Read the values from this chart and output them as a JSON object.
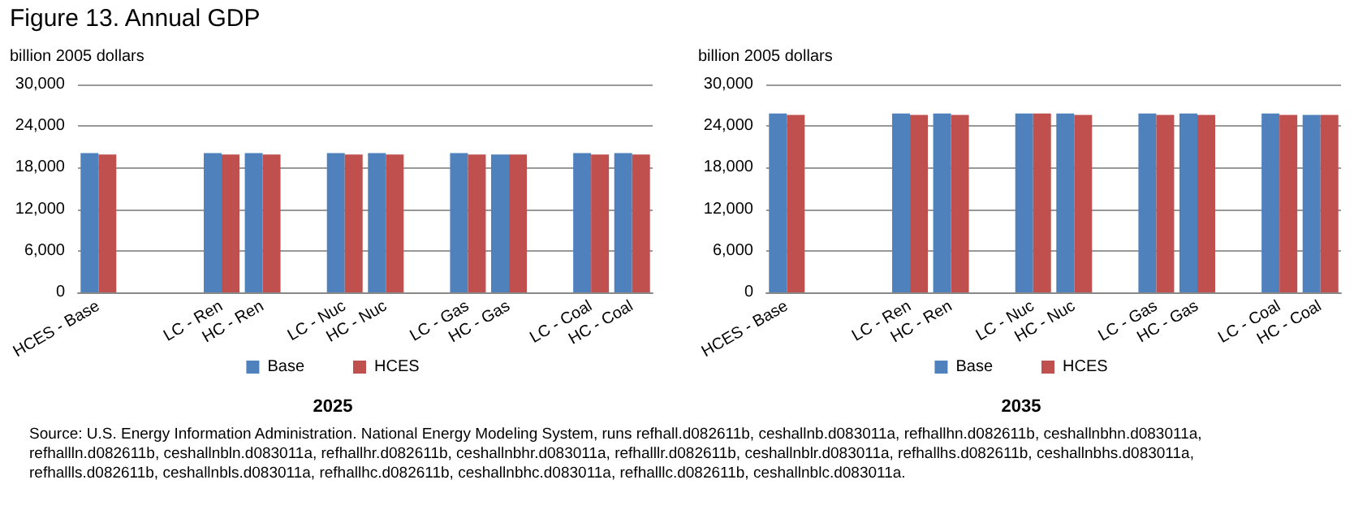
{
  "chart_data": [
    {
      "type": "bar",
      "title": "Figure 13.  Annual GDP",
      "ylabel": "billion 2005 dollars",
      "xlabel": "2025",
      "categories": [
        "HCES - Base",
        null,
        null,
        "LC - Ren",
        "HC - Ren",
        null,
        "LC - Nuc",
        "HC - Nuc",
        null,
        "LC - Gas",
        "HC - Gas",
        null,
        "LC - Coal",
        "HC - Coal"
      ],
      "series": [
        {
          "name": "Base",
          "color": "#4f81bd",
          "values": [
            20100,
            null,
            null,
            20100,
            20100,
            null,
            20100,
            20100,
            null,
            20100,
            19900,
            null,
            20100,
            20100
          ]
        },
        {
          "name": "HCES",
          "color": "#c0504d",
          "values": [
            19900,
            null,
            null,
            19900,
            19900,
            null,
            19900,
            19900,
            null,
            19900,
            19900,
            null,
            19900,
            19900
          ]
        }
      ],
      "ylim": [
        0,
        30000
      ],
      "yticks": [
        {
          "value": 0,
          "label": "0"
        },
        {
          "value": 6000,
          "label": "6,000"
        },
        {
          "value": 12000,
          "label": "12,000"
        },
        {
          "value": 18000,
          "label": "18,000"
        },
        {
          "value": 24000,
          "label": "24,000"
        },
        {
          "value": 30000,
          "label": "30,000"
        }
      ],
      "grid": "y",
      "legend": "bottom",
      "annotations": [
        "Source:  U.S. Energy Information Administration.  National Energy Modeling System, runs refhall.d082611b, ceshallnb.d083011a, refhallhn.d082611b, ceshallnbhn.d083011a, refhallln.d082611b, ceshallnbln.d083011a, refhallhr.d082611b, ceshallnbhr.d083011a, refhalllr.d082611b, ceshallnblr.d083011a, refhallhs.d082611b, ceshallnbhs.d083011a, refhallls.d082611b, ceshallnbls.d083011a, refhallhc.d082611b, ceshallnbhc.d083011a, refhalllc.d082611b, ceshallnblc.d083011a."
      ]
    },
    {
      "type": "bar",
      "ylabel": "billion 2005 dollars",
      "xlabel": "2035",
      "categories": [
        "HCES - Base",
        null,
        null,
        "LC - Ren",
        "HC - Ren",
        null,
        "LC - Nuc",
        "HC - Nuc",
        null,
        "LC - Gas",
        "HC - Gas",
        null,
        "LC - Coal",
        "HC - Coal"
      ],
      "series": [
        {
          "name": "Base",
          "color": "#4f81bd",
          "values": [
            25800,
            null,
            null,
            25800,
            25800,
            null,
            25800,
            25800,
            null,
            25800,
            25800,
            null,
            25800,
            25600
          ]
        },
        {
          "name": "HCES",
          "color": "#c0504d",
          "values": [
            25600,
            null,
            null,
            25600,
            25600,
            null,
            25800,
            25600,
            null,
            25600,
            25600,
            null,
            25600,
            25600
          ]
        }
      ],
      "ylim": [
        0,
        30000
      ],
      "yticks": [
        {
          "value": 0,
          "label": "0"
        },
        {
          "value": 6000,
          "label": "6,000"
        },
        {
          "value": 12000,
          "label": "12,000"
        },
        {
          "value": 18000,
          "label": "18,000"
        },
        {
          "value": 24000,
          "label": "24,000"
        },
        {
          "value": 30000,
          "label": "30,000"
        }
      ],
      "grid": "y",
      "legend": "bottom"
    }
  ]
}
